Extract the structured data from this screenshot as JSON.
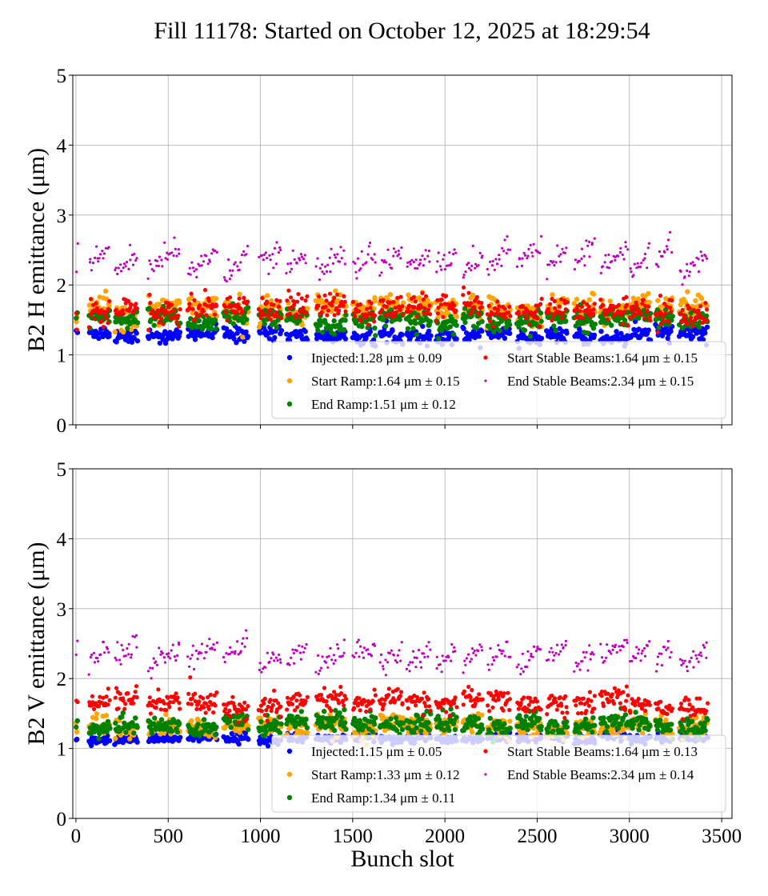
{
  "title": "Fill 11178: Started on October 12, 2025 at 18:29:54",
  "chart_data": [
    {
      "type": "scatter",
      "ylabel": "B2 H emittance (μm)",
      "xlabel": "",
      "xlim": [
        -17,
        3556
      ],
      "ylim": [
        0,
        5
      ],
      "yticks": [
        "0",
        "1",
        "2",
        "3",
        "4",
        "5"
      ],
      "xticks": [
        0,
        500,
        1000,
        1500,
        2000,
        2500,
        3000,
        3500
      ],
      "grid": true,
      "legend_position": "lower-right",
      "series": [
        {
          "name": "Injected:1.28 μm ± 0.09",
          "mean": 1.28,
          "std": 0.09,
          "color": "#0000ff"
        },
        {
          "name": "Start Ramp:1.64 μm ± 0.15",
          "mean": 1.64,
          "std": 0.15,
          "color": "#ffa500"
        },
        {
          "name": "End Ramp:1.51 μm ± 0.12",
          "mean": 1.51,
          "std": 0.12,
          "color": "#008000"
        },
        {
          "name": "Start Stable Beams:1.64 μm ± 0.15",
          "mean": 1.64,
          "std": 0.15,
          "color": "#ff0000"
        },
        {
          "name": "End Stable Beams:2.34 μm ± 0.15",
          "mean": 2.34,
          "std": 0.15,
          "color": "#bf00bf"
        }
      ]
    },
    {
      "type": "scatter",
      "ylabel": "B2 V emittance (μm)",
      "xlabel": "Bunch slot",
      "xlim": [
        -17,
        3556
      ],
      "ylim": [
        0,
        5
      ],
      "yticks": [
        "0",
        "1",
        "2",
        "3",
        "4",
        "5"
      ],
      "xticks": [
        0,
        500,
        1000,
        1500,
        2000,
        2500,
        3000,
        3500
      ],
      "grid": true,
      "legend_position": "lower-right",
      "series": [
        {
          "name": "Injected:1.15 μm ± 0.05",
          "mean": 1.15,
          "std": 0.05,
          "color": "#0000ff"
        },
        {
          "name": "Start Ramp:1.33 μm ± 0.12",
          "mean": 1.33,
          "std": 0.12,
          "color": "#ffa500"
        },
        {
          "name": "End Ramp:1.34 μm ± 0.11",
          "mean": 1.34,
          "std": 0.11,
          "color": "#008000"
        },
        {
          "name": "Start Stable Beams:1.64 μm ± 0.13",
          "mean": 1.64,
          "std": 0.13,
          "color": "#ff0000"
        },
        {
          "name": "End Stable Beams:2.34 μm ± 0.14",
          "mean": 2.34,
          "std": 0.14,
          "color": "#bf00bf"
        }
      ]
    }
  ],
  "bunch_trains": [
    [
      0,
      8
    ],
    [
      70,
      180
    ],
    [
      210,
      330
    ],
    [
      390,
      560
    ],
    [
      605,
      760
    ],
    [
      800,
      930
    ],
    [
      990,
      1110
    ],
    [
      1140,
      1250
    ],
    [
      1300,
      1460
    ],
    [
      1500,
      1620
    ],
    [
      1645,
      1770
    ],
    [
      1790,
      1920
    ],
    [
      1950,
      2060
    ],
    [
      2095,
      2200
    ],
    [
      2230,
      2350
    ],
    [
      2390,
      2520
    ],
    [
      2550,
      2660
    ],
    [
      2700,
      2810
    ],
    [
      2840,
      2990
    ],
    [
      3000,
      3110
    ],
    [
      3140,
      3230
    ],
    [
      3270,
      3420
    ]
  ]
}
